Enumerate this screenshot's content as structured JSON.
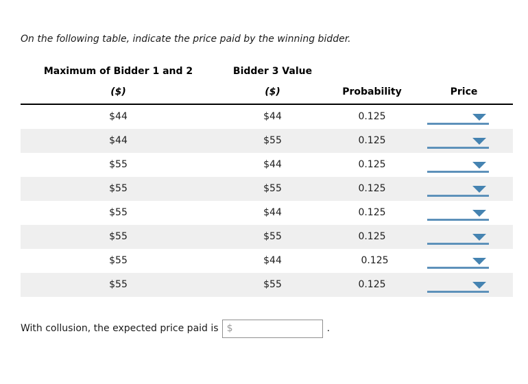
{
  "intro": "On the following table, indicate the price paid by the winning bidder.",
  "table": {
    "group_headers": [
      "Maximum of Bidder 1 and 2",
      "Bidder 3 Value"
    ],
    "col_headers": [
      "($)",
      "($)",
      "Probability",
      "Price"
    ],
    "rows": [
      {
        "max_bidder_1_and_2": "$44",
        "bidder_3_value": "$44",
        "probability": "0.125",
        "price": ""
      },
      {
        "max_bidder_1_and_2": "$44",
        "bidder_3_value": "$55",
        "probability": "0.125",
        "price": ""
      },
      {
        "max_bidder_1_and_2": "$55",
        "bidder_3_value": "$44",
        "probability": "0.125",
        "price": ""
      },
      {
        "max_bidder_1_and_2": "$55",
        "bidder_3_value": "$55",
        "probability": "0.125",
        "price": ""
      },
      {
        "max_bidder_1_and_2": "$55",
        "bidder_3_value": "$44",
        "probability": "0.125",
        "price": ""
      },
      {
        "max_bidder_1_and_2": "$55",
        "bidder_3_value": "$55",
        "probability": "0.125",
        "price": ""
      },
      {
        "max_bidder_1_and_2": "$55",
        "bidder_3_value": "$44",
        "probability": "0.125",
        "price": ""
      },
      {
        "max_bidder_1_and_2": "$55",
        "bidder_3_value": "$55",
        "probability": "0.125",
        "price": ""
      }
    ],
    "price_dropdown_icon": "chevron-down-icon"
  },
  "footer": {
    "text": "With collusion, the expected price paid is",
    "input_prefix": "$",
    "input_value": "",
    "suffix": "."
  },
  "colors": {
    "dropdown_triangle_blue": "#4583b1",
    "dropdown_line_blue": "#5d91ba",
    "alt_row_gray": "#efefef",
    "header_rule_black": "#000000"
  }
}
